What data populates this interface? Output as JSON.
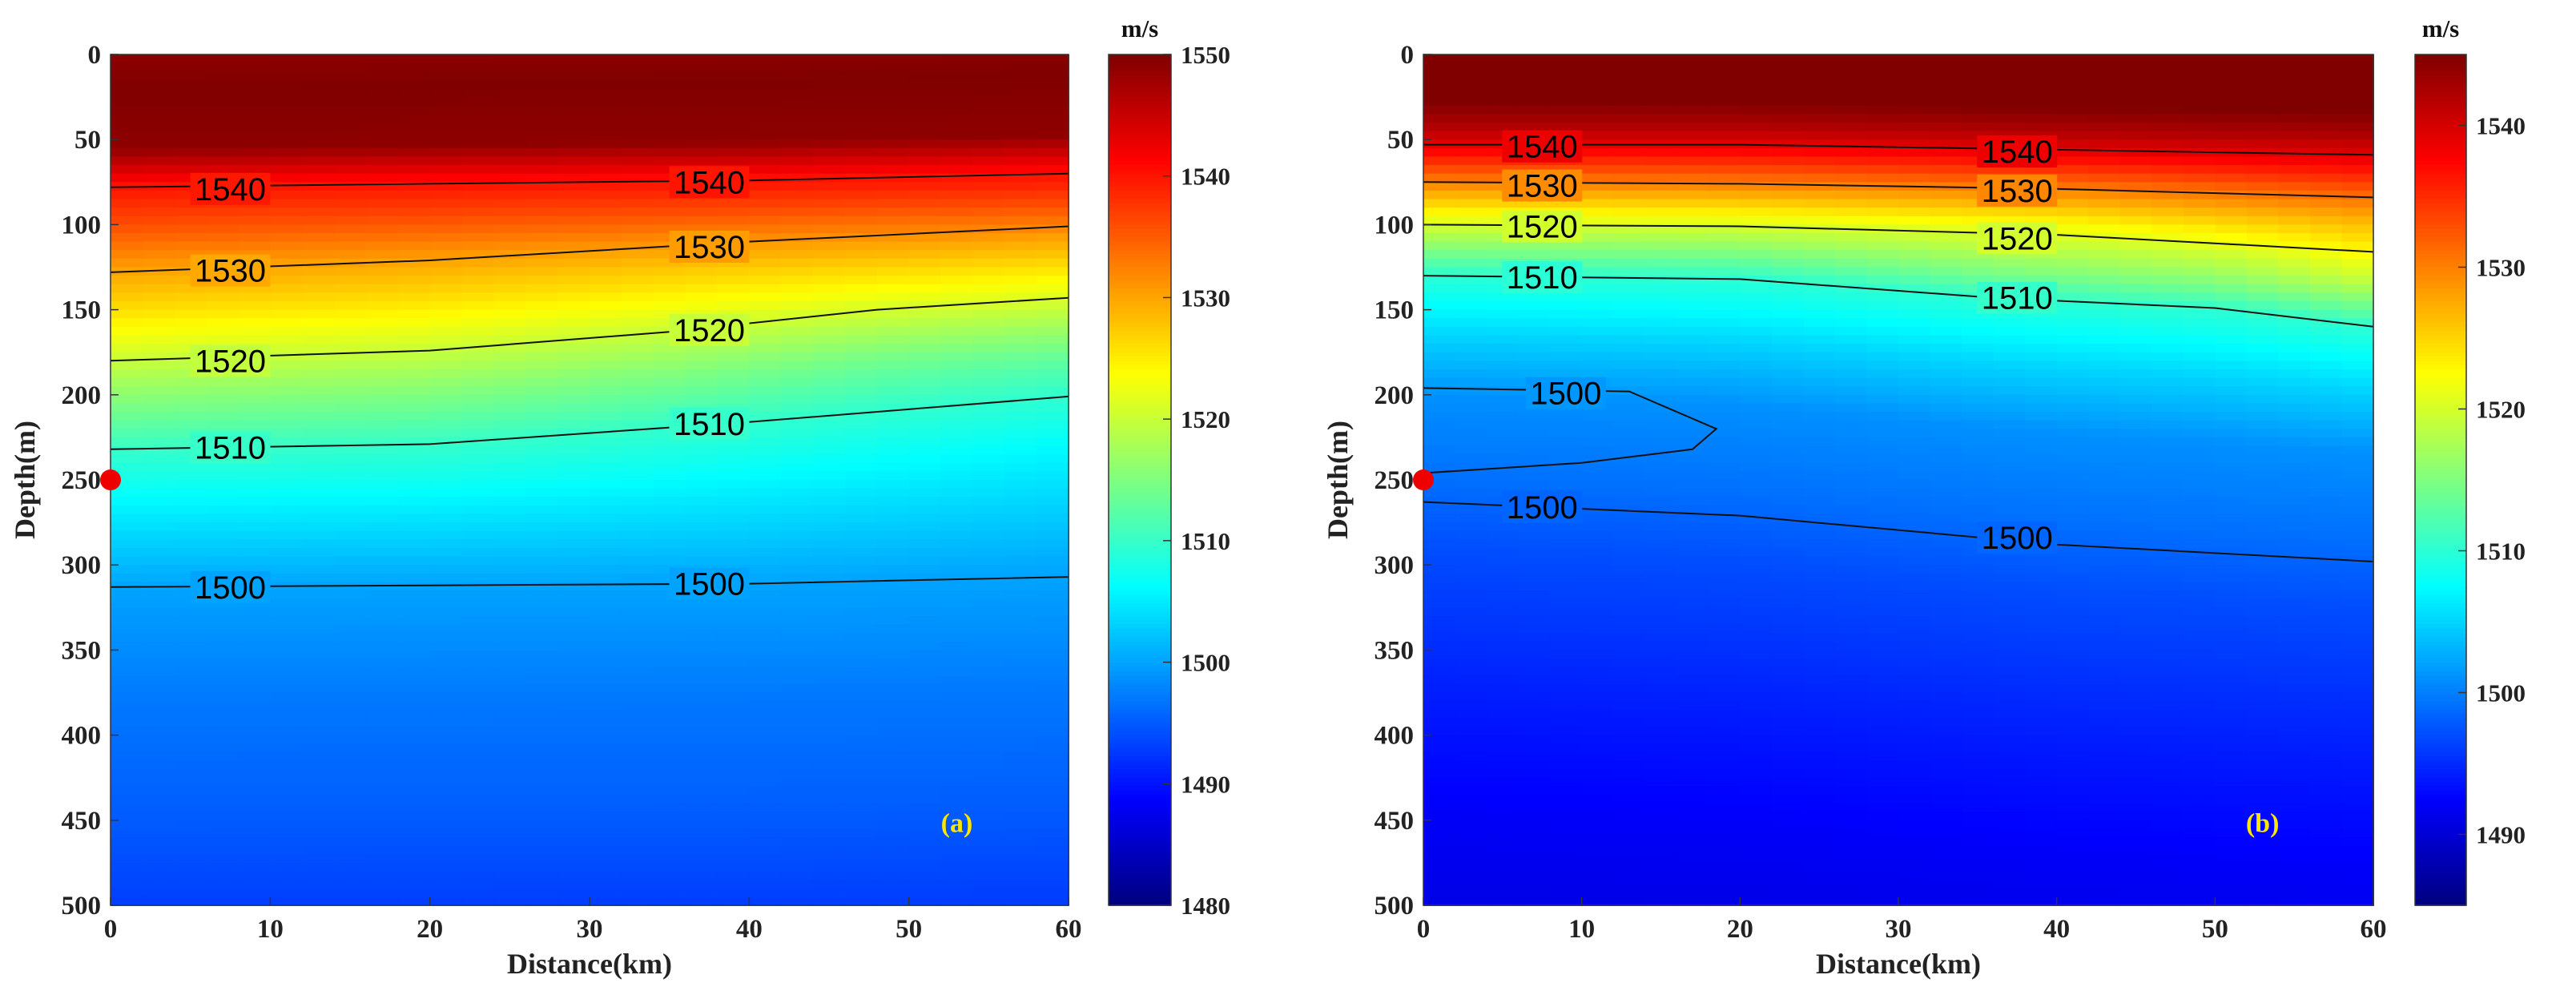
{
  "chart_data": [
    {
      "type": "heatmap",
      "panel_label": "(a)",
      "xlabel": "Distance(km)",
      "ylabel": "Depth(m)",
      "xlim": [
        0,
        60
      ],
      "ylim": [
        0,
        500
      ],
      "x_ticks": [
        0,
        10,
        20,
        30,
        40,
        50,
        60
      ],
      "y_ticks": [
        0,
        50,
        100,
        150,
        200,
        250,
        300,
        350,
        400,
        450,
        500
      ],
      "colorbar": {
        "unit": "m/s",
        "range": [
          1480,
          1550
        ],
        "ticks": [
          1480,
          1490,
          1500,
          1510,
          1520,
          1530,
          1540,
          1550
        ]
      },
      "profile": [
        [
          0,
          1549
        ],
        [
          20,
          1550
        ],
        [
          55,
          1549
        ],
        [
          65,
          1545
        ],
        [
          78,
          1540
        ],
        [
          100,
          1536
        ],
        [
          128,
          1530
        ],
        [
          150,
          1526
        ],
        [
          180,
          1520
        ],
        [
          205,
          1515
        ],
        [
          232,
          1510
        ],
        [
          270,
          1505
        ],
        [
          313,
          1500
        ],
        [
          380,
          1497
        ],
        [
          450,
          1495
        ],
        [
          500,
          1493
        ]
      ],
      "contour_ref": [
        {
          "level": 1540,
          "depth_left": 78
        },
        {
          "level": 1530,
          "depth_left": 128
        },
        {
          "level": 1520,
          "depth_left": 180
        },
        {
          "level": 1510,
          "depth_left": 232
        },
        {
          "level": 1500,
          "depth_left": 313
        }
      ],
      "contours": [
        {
          "level": 1540,
          "points": [
            [
              0,
              78
            ],
            [
              20,
              76
            ],
            [
              40,
              74
            ],
            [
              60,
              70
            ]
          ],
          "label_positions": [
            [
              7.5,
              79
            ],
            [
              37.5,
              75
            ]
          ]
        },
        {
          "level": 1530,
          "points": [
            [
              0,
              128
            ],
            [
              20,
              121
            ],
            [
              40,
              110
            ],
            [
              60,
              101
            ]
          ],
          "label_positions": [
            [
              7.5,
              127
            ],
            [
              37.5,
              113
            ]
          ]
        },
        {
          "level": 1520,
          "points": [
            [
              0,
              180
            ],
            [
              20,
              174
            ],
            [
              35,
              163
            ],
            [
              48,
              150
            ],
            [
              60,
              143
            ]
          ],
          "label_positions": [
            [
              7.5,
              180
            ],
            [
              37.5,
              162
            ]
          ]
        },
        {
          "level": 1510,
          "points": [
            [
              0,
              232
            ],
            [
              20,
              229
            ],
            [
              40,
              216
            ],
            [
              60,
              201
            ]
          ],
          "label_positions": [
            [
              7.5,
              231
            ],
            [
              37.5,
              217
            ]
          ]
        },
        {
          "level": 1500,
          "points": [
            [
              0,
              313
            ],
            [
              20,
              312
            ],
            [
              40,
              311
            ],
            [
              60,
              307
            ]
          ],
          "label_positions": [
            [
              7.5,
              313
            ],
            [
              37.5,
              311
            ]
          ]
        }
      ],
      "source_point": {
        "x": 0,
        "y": 250
      }
    },
    {
      "type": "heatmap",
      "panel_label": "(b)",
      "xlabel": "Distance(km)",
      "ylabel": "Depth(m)",
      "xlim": [
        0,
        60
      ],
      "ylim": [
        0,
        500
      ],
      "x_ticks": [
        0,
        10,
        20,
        30,
        40,
        50,
        60
      ],
      "y_ticks": [
        0,
        50,
        100,
        150,
        200,
        250,
        300,
        350,
        400,
        450,
        500
      ],
      "colorbar": {
        "unit": "m/s",
        "range": [
          1485,
          1545
        ],
        "ticks": [
          1490,
          1500,
          1510,
          1520,
          1530,
          1540
        ]
      },
      "profile": [
        [
          0,
          1545
        ],
        [
          30,
          1545
        ],
        [
          45,
          1542
        ],
        [
          55,
          1539
        ],
        [
          75,
          1530
        ],
        [
          100,
          1520
        ],
        [
          130,
          1510
        ],
        [
          165,
          1505
        ],
        [
          200,
          1501
        ],
        [
          250,
          1499
        ],
        [
          290,
          1497
        ],
        [
          380,
          1494
        ],
        [
          450,
          1492
        ],
        [
          500,
          1491
        ]
      ],
      "contour_ref": [
        {
          "level": 1540,
          "depth_left": 55
        },
        {
          "level": 1530,
          "depth_left": 75
        },
        {
          "level": 1520,
          "depth_left": 100
        },
        {
          "level": 1510,
          "depth_left": 130
        },
        {
          "level": 1500,
          "depth_left": 262
        }
      ],
      "contours": [
        {
          "level": 1540,
          "points": [
            [
              0,
              53
            ],
            [
              20,
              53
            ],
            [
              40,
              56
            ],
            [
              60,
              59
            ]
          ],
          "label_positions": [
            [
              7.5,
              54
            ],
            [
              37.5,
              57
            ]
          ]
        },
        {
          "level": 1530,
          "points": [
            [
              0,
              75
            ],
            [
              20,
              76
            ],
            [
              40,
              79
            ],
            [
              60,
              84
            ]
          ],
          "label_positions": [
            [
              7.5,
              77
            ],
            [
              37.5,
              80
            ]
          ]
        },
        {
          "level": 1520,
          "points": [
            [
              0,
              100
            ],
            [
              20,
              101
            ],
            [
              40,
              106
            ],
            [
              60,
              116
            ]
          ],
          "label_positions": [
            [
              7.5,
              101
            ],
            [
              37.5,
              108
            ]
          ]
        },
        {
          "level": 1510,
          "points": [
            [
              0,
              130
            ],
            [
              20,
              132
            ],
            [
              36,
              143
            ],
            [
              50,
              149
            ],
            [
              60,
              160
            ]
          ],
          "label_positions": [
            [
              7.5,
              131
            ],
            [
              37.5,
              143
            ]
          ]
        },
        {
          "level": 1500,
          "points": [
            [
              0,
              196
            ],
            [
              13,
              198
            ],
            [
              18.5,
              220
            ],
            [
              17,
              232
            ],
            [
              10,
              240
            ],
            [
              0,
              246
            ]
          ],
          "label_positions": [
            [
              9,
              199
            ]
          ]
        },
        {
          "level": 1500,
          "points": [
            [
              0,
              263
            ],
            [
              20,
              271
            ],
            [
              40,
              288
            ],
            [
              60,
              298
            ]
          ],
          "label_positions": [
            [
              7.5,
              266
            ],
            [
              37.5,
              284
            ]
          ]
        }
      ],
      "source_point": {
        "x": 0,
        "y": 250
      }
    }
  ]
}
